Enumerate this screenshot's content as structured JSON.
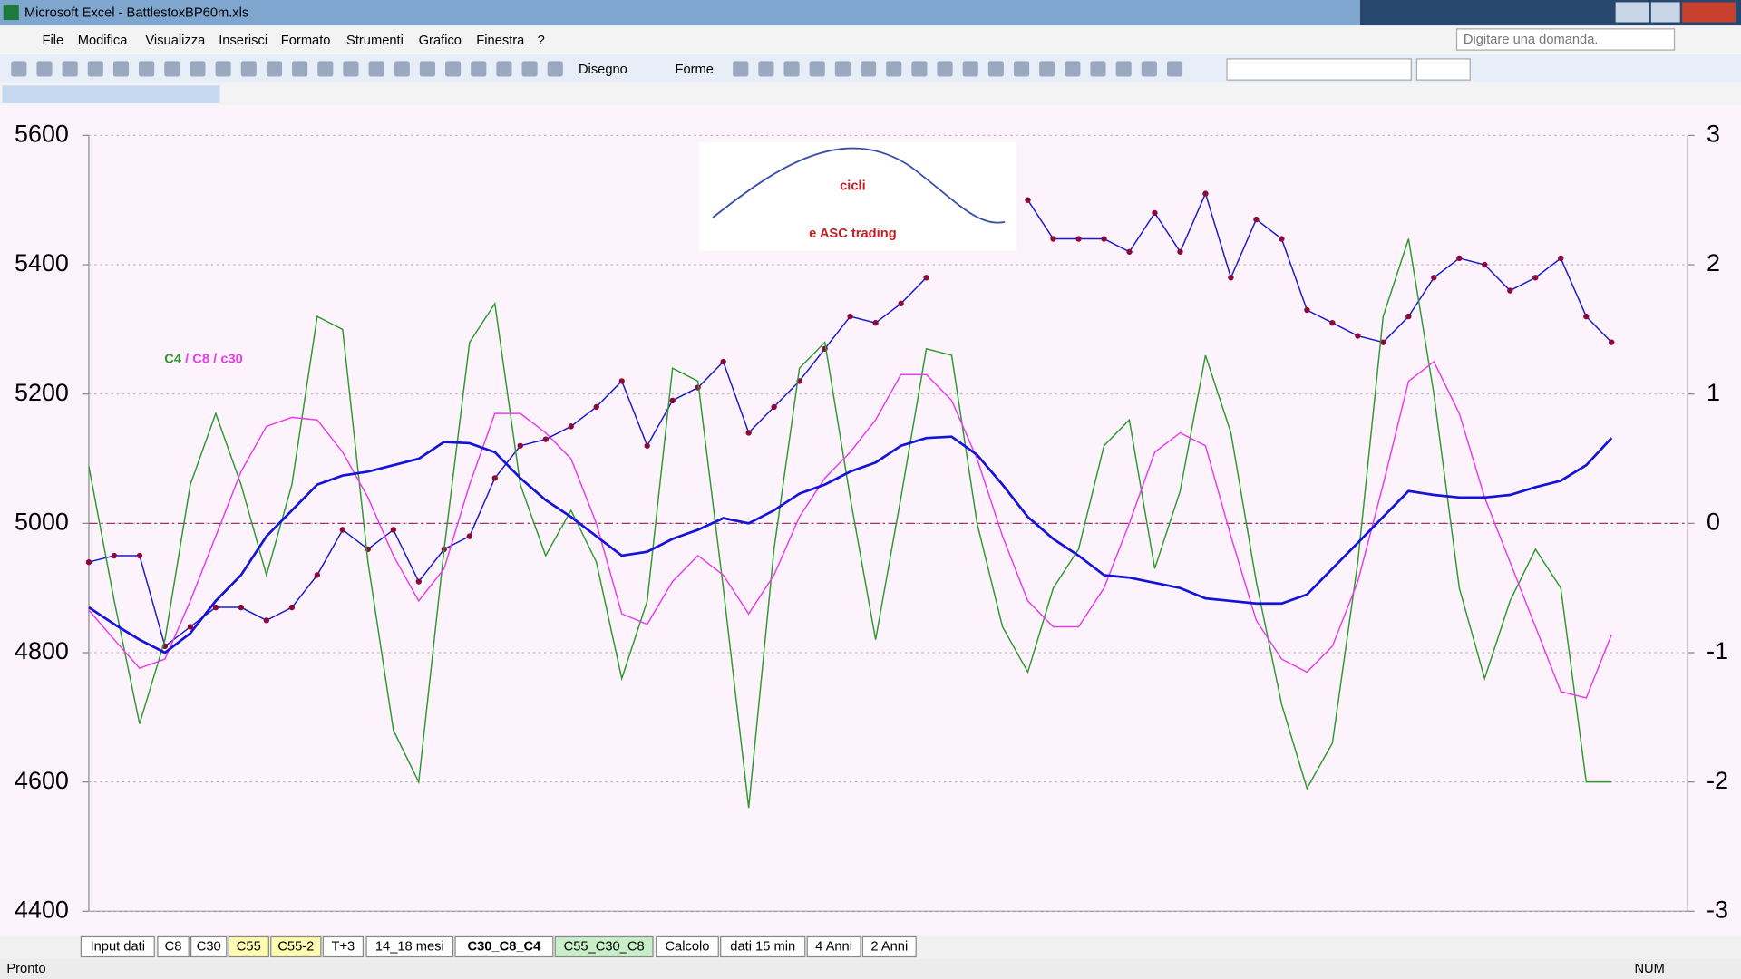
{
  "window": {
    "title": "Microsoft Excel - BattlestoxBP60m.xls",
    "menu": [
      "File",
      "Modifica",
      "Visualizza",
      "Inserisci",
      "Formato",
      "Strumenti",
      "Grafico",
      "Finestra",
      "?"
    ],
    "help_box": "Digitare una domanda.",
    "toolbar": [
      "Disegno",
      "Forme"
    ],
    "sheet_tabs": [
      "Input dati",
      "C8",
      "C30",
      "C55",
      "C55-2",
      "T+3",
      "14_18 mesi",
      "C30_C8_C4",
      "C55_C30_C8",
      "Calcolo",
      "dati 15 min",
      "4 Anni",
      "2 Anni"
    ],
    "status": [
      "Pronto",
      "NUM"
    ]
  },
  "chart_data": {
    "type": "line",
    "logo": {
      "title": "cicli",
      "subtitle": "e ASC trading"
    },
    "legend_separator": "/",
    "xlim": [
      0,
      63
    ],
    "ylim": [
      4400,
      5600
    ],
    "yticks": [
      4400,
      4600,
      4800,
      5000,
      5200,
      5400,
      5600
    ],
    "y2lim": [
      -3,
      3
    ],
    "y2ticks": [
      -3,
      -2,
      -1,
      0,
      1,
      2,
      3
    ],
    "grid": true,
    "series": [
      {
        "color": "#1a1acc",
        "marker_color": "#8b0a3a",
        "values": [
          4940,
          4950,
          4950,
          4810,
          4840,
          4870,
          4870,
          4850,
          4870,
          4920,
          4990,
          4960,
          4990,
          4910,
          4960,
          4980,
          5070,
          5120,
          5130,
          5150,
          5180,
          5220,
          5120,
          5190,
          5210,
          5250,
          5140,
          5180,
          5220,
          5270,
          5320,
          5310,
          5340,
          5380,
          null,
          null,
          null,
          5500,
          5440,
          5440,
          5440,
          5420,
          5480,
          5420,
          5510,
          5380,
          5470,
          5440,
          5330,
          5310,
          5290,
          5280,
          5320,
          5380,
          5410,
          5400,
          5360,
          5380,
          5410,
          5320,
          5280
        ]
      },
      {
        "name": "C4",
        "color": "#2e9a2e",
        "axis": "y2",
        "values": [
          0.44,
          -0.6,
          -1.55,
          -0.9,
          0.3,
          0.85,
          0.3,
          -0.4,
          0.3,
          1.6,
          1.5,
          -0.3,
          -1.6,
          -2.0,
          -0.2,
          1.4,
          1.7,
          0.3,
          -0.25,
          0.1,
          -0.3,
          -1.2,
          -0.6,
          1.2,
          1.1,
          -0.5,
          -2.2,
          -0.2,
          1.2,
          1.4,
          0.2,
          -0.9,
          0.2,
          1.35,
          1.3,
          0.0,
          -0.8,
          -1.15,
          -0.5,
          -0.2,
          0.6,
          0.8,
          -0.35,
          0.25,
          1.3,
          0.7,
          -0.45,
          -1.4,
          -2.05,
          -1.7,
          -0.3,
          1.6,
          2.2,
          1.0,
          -0.5,
          -1.2,
          -0.6,
          -0.2,
          -0.5,
          -2.0,
          -2.0
        ]
      },
      {
        "name": "C8",
        "color": "#e83ee8",
        "axis": "y2",
        "values": [
          -0.67,
          -0.9,
          -1.12,
          -1.05,
          -0.6,
          -0.1,
          0.4,
          0.75,
          0.82,
          0.8,
          0.55,
          0.2,
          -0.25,
          -0.6,
          -0.35,
          0.3,
          0.85,
          0.85,
          0.7,
          0.5,
          0.0,
          -0.7,
          -0.78,
          -0.45,
          -0.25,
          -0.4,
          -0.7,
          -0.4,
          0.05,
          0.35,
          0.55,
          0.8,
          1.15,
          1.15,
          0.95,
          0.5,
          -0.1,
          -0.6,
          -0.8,
          -0.8,
          -0.5,
          0.0,
          0.55,
          0.7,
          0.6,
          -0.1,
          -0.75,
          -1.05,
          -1.15,
          -0.95,
          -0.45,
          0.3,
          1.1,
          1.25,
          0.85,
          0.2,
          -0.3,
          -0.8,
          -1.3,
          -1.35,
          -0.86
        ]
      },
      {
        "name": "c30",
        "color": "#1414d8",
        "axis": "y2",
        "values": [
          -0.65,
          -0.78,
          -0.9,
          -1.0,
          -0.85,
          -0.6,
          -0.4,
          -0.1,
          0.1,
          0.3,
          0.37,
          0.4,
          0.45,
          0.5,
          0.63,
          0.62,
          0.55,
          0.35,
          0.18,
          0.05,
          -0.1,
          -0.25,
          -0.22,
          -0.12,
          -0.05,
          0.04,
          0.0,
          0.1,
          0.23,
          0.3,
          0.4,
          0.47,
          0.6,
          0.66,
          0.67,
          0.53,
          0.3,
          0.05,
          -0.12,
          -0.25,
          -0.4,
          -0.42,
          -0.46,
          -0.5,
          -0.58,
          -0.6,
          -0.62,
          -0.62,
          -0.55,
          -0.35,
          -0.15,
          0.05,
          0.25,
          0.22,
          0.2,
          0.2,
          0.22,
          0.28,
          0.33,
          0.45,
          0.66
        ]
      }
    ]
  }
}
